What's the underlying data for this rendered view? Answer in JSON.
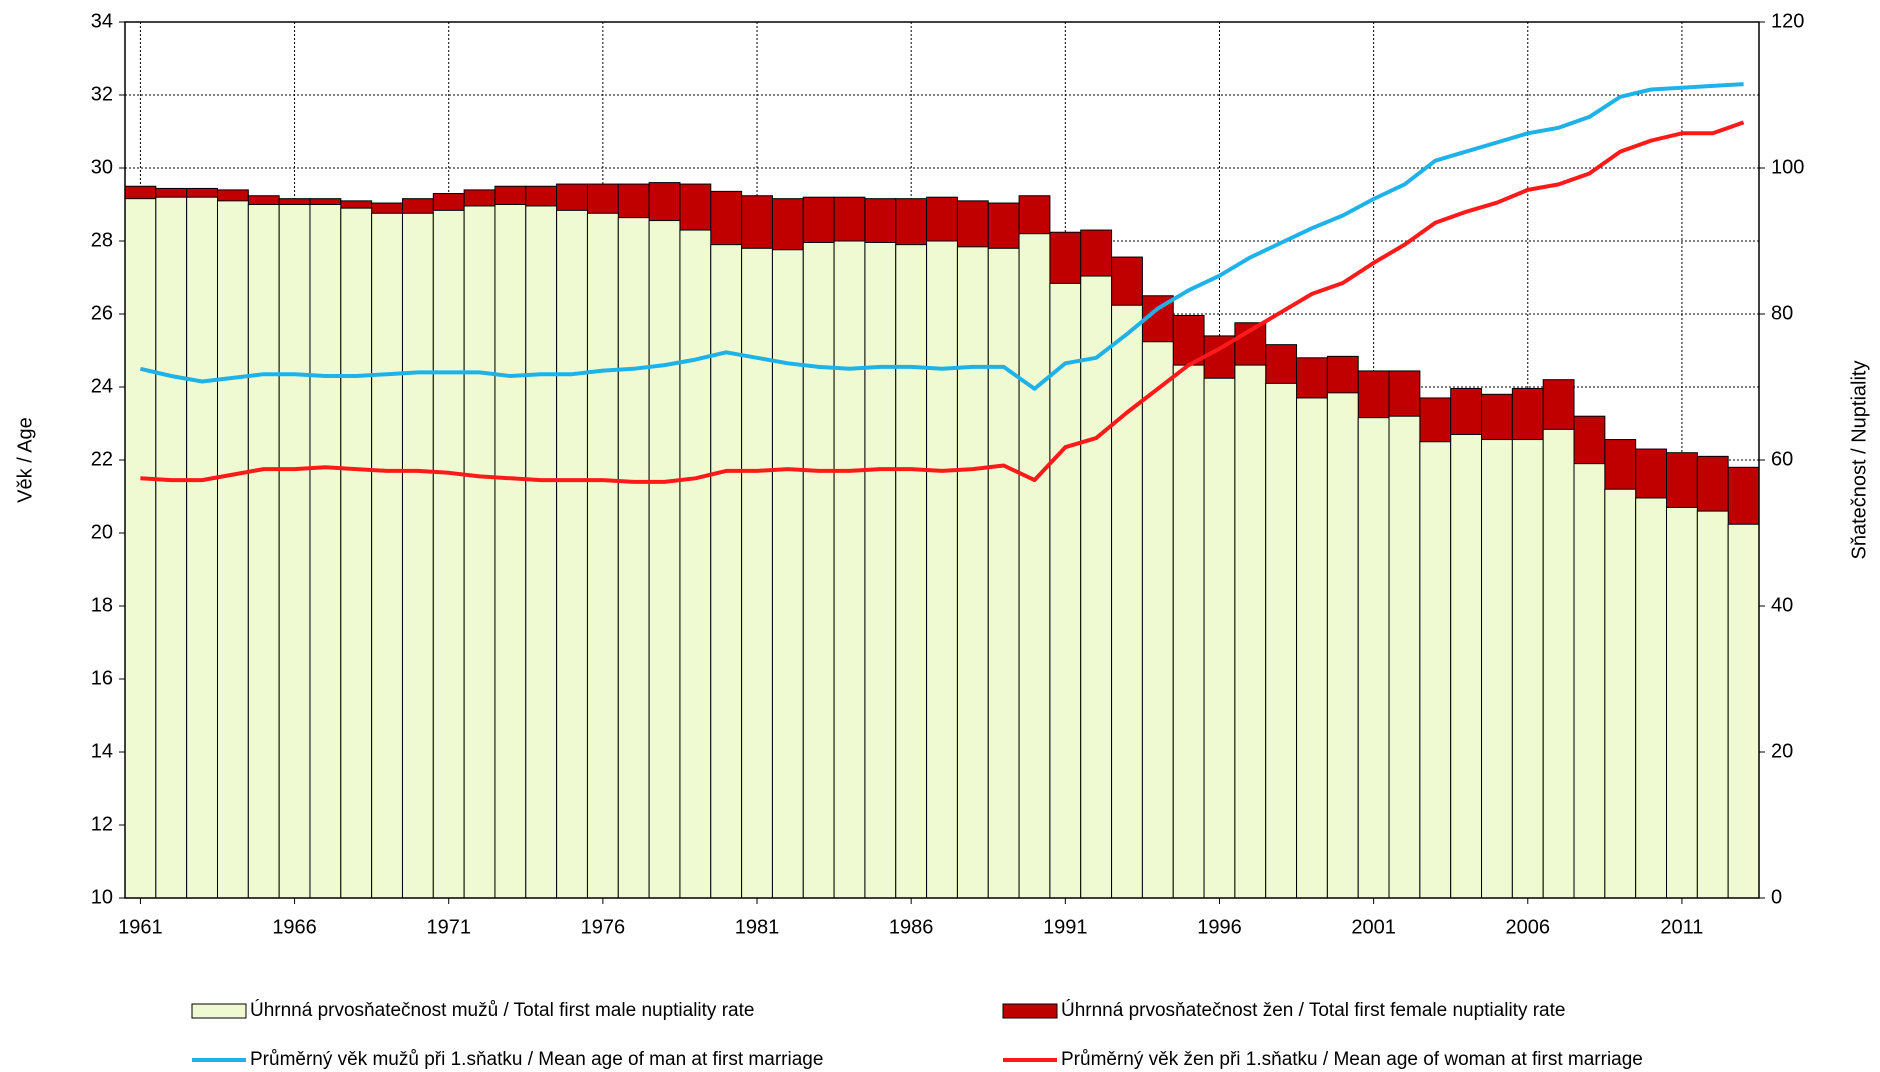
{
  "chart_data": {
    "type": "bar",
    "ylabel": "Věk / Age",
    "y2label": "Sňatečnost / Nuptiality",
    "x": [
      1961,
      1962,
      1963,
      1964,
      1965,
      1966,
      1967,
      1968,
      1969,
      1970,
      1971,
      1972,
      1973,
      1974,
      1975,
      1976,
      1977,
      1978,
      1979,
      1980,
      1981,
      1982,
      1983,
      1984,
      1985,
      1986,
      1987,
      1988,
      1989,
      1990,
      1991,
      1992,
      1993,
      1994,
      1995,
      1996,
      1997,
      1998,
      1999,
      2000,
      2001,
      2002,
      2003,
      2004,
      2005,
      2006,
      2007,
      2008,
      2009,
      2010,
      2011,
      2012,
      2013
    ],
    "xlim": [
      1960.5,
      2013.5
    ],
    "xticks": [
      1961,
      1966,
      1971,
      1976,
      1981,
      1986,
      1991,
      1996,
      2001,
      2006,
      2011
    ],
    "ylim": [
      10,
      34
    ],
    "yticks": [
      10,
      12,
      14,
      16,
      18,
      20,
      22,
      24,
      26,
      28,
      30,
      32,
      34
    ],
    "y2lim": [
      0,
      120
    ],
    "y2ticks": [
      0,
      20,
      40,
      60,
      80,
      100,
      120
    ],
    "grid": true,
    "series": [
      {
        "name": "Úhrnná prvosňatečnost mužů / Total first male nuptiality rate",
        "type": "bar",
        "axis": "y2",
        "color": "#f0fad2",
        "values": [
          95.8,
          96,
          96,
          95.5,
          95,
          95,
          95,
          94.5,
          93.8,
          93.8,
          94.2,
          94.8,
          95,
          94.8,
          94.2,
          93.8,
          93.2,
          92.8,
          91.5,
          89.5,
          89,
          88.8,
          89.8,
          90,
          89.8,
          89.5,
          90,
          89.2,
          89,
          91,
          84.2,
          85.2,
          81.2,
          76.2,
          73,
          71.2,
          73,
          70.5,
          68.5,
          69.2,
          65.8,
          66,
          62.5,
          63.5,
          62.8,
          62.8,
          64.2,
          59.5,
          56,
          54.8,
          53.5,
          53,
          51.2
        ]
      },
      {
        "name": "Úhrnná prvosňatečnost žen / Total first female nuptiality rate",
        "type": "bar",
        "axis": "y2",
        "color": "#c00000",
        "values": [
          97.5,
          97.2,
          97.2,
          97,
          96.2,
          95.8,
          95.8,
          95.5,
          95.2,
          95.8,
          96.5,
          97,
          97.5,
          97.5,
          97.8,
          97.8,
          97.8,
          98,
          97.8,
          96.8,
          96.2,
          95.8,
          96,
          96,
          95.8,
          95.8,
          96,
          95.5,
          95.2,
          96.2,
          91.2,
          91.5,
          87.8,
          82.5,
          79.8,
          77,
          78.8,
          75.8,
          74,
          74.2,
          72.2,
          72.2,
          68.5,
          69.8,
          69,
          69.8,
          71,
          66,
          62.8,
          61.5,
          61,
          60.5,
          59
        ]
      },
      {
        "name": "Průměrný věk mužů při 1.sňatku / Mean age of man at first marriage",
        "type": "line",
        "color": "#1fb2e8",
        "values": [
          24.5,
          24.3,
          24.15,
          24.25,
          24.35,
          24.35,
          24.3,
          24.3,
          24.35,
          24.4,
          24.4,
          24.4,
          24.3,
          24.35,
          24.35,
          24.45,
          24.5,
          24.6,
          24.75,
          24.95,
          24.8,
          24.65,
          24.55,
          24.5,
          24.55,
          24.55,
          24.5,
          24.55,
          24.55,
          23.95,
          24.65,
          24.8,
          25.45,
          26.15,
          26.65,
          27.05,
          27.55,
          27.95,
          28.35,
          28.7,
          29.15,
          29.55,
          30.2,
          30.45,
          30.7,
          30.95,
          31.1,
          31.4,
          31.95,
          32.15,
          32.2,
          32.25,
          32.3
        ]
      },
      {
        "name": "Průměrný věk žen při 1.sňatku / Mean age of woman at first marriage",
        "type": "line",
        "color": "#ff1a1a",
        "values": [
          21.5,
          21.45,
          21.45,
          21.6,
          21.75,
          21.75,
          21.8,
          21.75,
          21.7,
          21.7,
          21.65,
          21.55,
          21.5,
          21.45,
          21.45,
          21.45,
          21.4,
          21.4,
          21.5,
          21.7,
          21.7,
          21.75,
          21.7,
          21.7,
          21.75,
          21.75,
          21.7,
          21.75,
          21.85,
          21.45,
          22.35,
          22.6,
          23.3,
          23.95,
          24.6,
          25.05,
          25.55,
          26.05,
          26.55,
          26.85,
          27.4,
          27.9,
          28.5,
          28.8,
          29.05,
          29.4,
          29.55,
          29.85,
          30.45,
          30.75,
          30.95,
          30.95,
          31.25
        ]
      }
    ]
  }
}
